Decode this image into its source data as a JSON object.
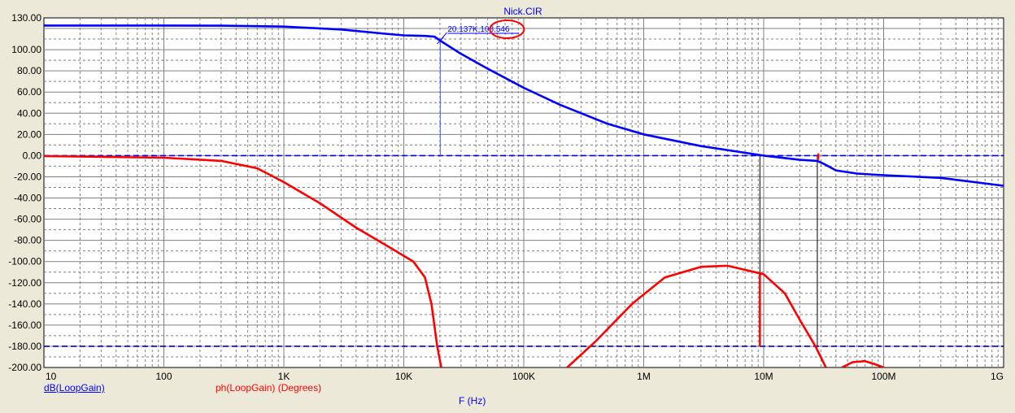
{
  "chart_data": {
    "type": "line",
    "title": "Nick.CIR",
    "xlabel": "F (Hz)",
    "x_scale": "log",
    "xlim": [
      10,
      1000000000
    ],
    "ylim": [
      -200,
      130
    ],
    "grid": true,
    "y_ticks": [
      "130.00",
      "100.00",
      "80.00",
      "60.00",
      "40.00",
      "20.00",
      "0.00",
      "-20.00",
      "-40.00",
      "-60.00",
      "-80.00",
      "-100.00",
      "-120.00",
      "-140.00",
      "-160.00",
      "-180.00",
      "-200.00"
    ],
    "y_tick_values": [
      130,
      100,
      80,
      60,
      40,
      20,
      0,
      -20,
      -40,
      -60,
      -80,
      -100,
      -120,
      -140,
      -160,
      -180,
      -200
    ],
    "x_ticks": [
      "10",
      "100",
      "1K",
      "10K",
      "100K",
      "1M",
      "10M",
      "100M",
      "1G"
    ],
    "x_tick_values": [
      10,
      100,
      1000,
      10000,
      100000,
      1000000,
      10000000,
      100000000,
      1000000000
    ],
    "series": [
      {
        "name": "dB(LoopGain)",
        "color": "#0000ff",
        "points": [
          [
            10,
            122.8
          ],
          [
            30,
            122.8
          ],
          [
            100,
            122.8
          ],
          [
            300,
            122.6
          ],
          [
            1000,
            121.8
          ],
          [
            3000,
            119
          ],
          [
            7000,
            115
          ],
          [
            10000,
            113.5
          ],
          [
            15000,
            113
          ],
          [
            18000,
            112.3
          ],
          [
            20137,
            108.546
          ],
          [
            30000,
            96
          ],
          [
            50000,
            82
          ],
          [
            100000,
            64
          ],
          [
            200000,
            48
          ],
          [
            500000,
            30
          ],
          [
            1000000,
            20
          ],
          [
            3000000,
            9
          ],
          [
            10000000,
            0
          ],
          [
            20000000,
            -4
          ],
          [
            28000000,
            -5
          ],
          [
            32000000,
            -8
          ],
          [
            40000000,
            -14
          ],
          [
            60000000,
            -17
          ],
          [
            100000000,
            -18.5
          ],
          [
            300000000,
            -21
          ],
          [
            1000000000,
            -28.5
          ]
        ]
      },
      {
        "name": "ph(LoopGain) (Degrees)",
        "color": "#ff0000",
        "segments": [
          [
            [
              10,
              -0.5
            ],
            [
              100,
              -2
            ],
            [
              300,
              -5
            ],
            [
              600,
              -12
            ],
            [
              1000,
              -25
            ],
            [
              2000,
              -45
            ],
            [
              4000,
              -68
            ],
            [
              8000,
              -88
            ],
            [
              12000,
              -100
            ],
            [
              15000,
              -115
            ],
            [
              17000,
              -140
            ],
            [
              19000,
              -180
            ],
            [
              20500,
              -200
            ]
          ],
          [
            [
              230000,
              -200
            ],
            [
              400000,
              -175
            ],
            [
              800000,
              -140
            ],
            [
              1500000,
              -115
            ],
            [
              3000000,
              -105
            ],
            [
              5000000,
              -104
            ],
            [
              10000000,
              -112
            ],
            [
              15000000,
              -130
            ],
            [
              20000000,
              -155
            ],
            [
              27000000,
              -180
            ],
            [
              33000000,
              -200
            ]
          ],
          [
            [
              45000000,
              -200
            ],
            [
              55000000,
              -195
            ],
            [
              70000000,
              -194
            ],
            [
              85000000,
              -197
            ],
            [
              100000000,
              -200
            ]
          ]
        ]
      }
    ],
    "reference_lines": [
      {
        "y": 0,
        "color": "#0000ff"
      },
      {
        "y": -180,
        "color": "#0000cc"
      }
    ],
    "cursors": [
      {
        "x": 20137,
        "color": "#3366ff",
        "from_y": 0,
        "to_y": 108.546
      },
      {
        "x": 9300000,
        "color": "#000000",
        "from_y": 0,
        "to_y": -180
      },
      {
        "x": 28000000,
        "color": "#000000",
        "from_y": 0,
        "to_y": -180
      }
    ],
    "markers": [
      {
        "x": 9300000,
        "y_from": -112,
        "y_to": -180,
        "color": "#ff0000"
      },
      {
        "x": 28500000,
        "y_from": -4,
        "y_to": 2,
        "color": "#ff0000"
      }
    ],
    "annotation": {
      "text": "20.137K,108.546",
      "x": 20137,
      "y": 108.546,
      "circled": "108.546"
    }
  }
}
